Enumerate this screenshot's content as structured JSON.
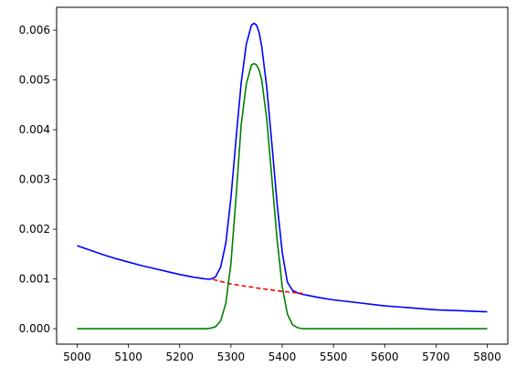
{
  "chart_data": {
    "type": "line",
    "title": "",
    "xlabel": "",
    "ylabel": "",
    "xlim": [
      4960,
      5840
    ],
    "ylim": [
      -0.00031,
      0.00646
    ],
    "grid": false,
    "x_ticks": [
      5000,
      5100,
      5200,
      5300,
      5400,
      5500,
      5600,
      5700,
      5800
    ],
    "y_ticks": [
      0.0,
      0.001,
      0.002,
      0.003,
      0.004,
      0.005,
      0.006
    ],
    "y_tick_labels": [
      "0.000",
      "0.001",
      "0.002",
      "0.003",
      "0.004",
      "0.005",
      "0.006"
    ],
    "series": [
      {
        "color": "#0000ff",
        "style": "solid",
        "x": [
          5000,
          5025,
          5050,
          5075,
          5100,
          5125,
          5150,
          5175,
          5200,
          5225,
          5250,
          5260,
          5270,
          5280,
          5290,
          5300,
          5310,
          5320,
          5330,
          5340,
          5345,
          5350,
          5355,
          5360,
          5370,
          5380,
          5390,
          5400,
          5410,
          5420,
          5430,
          5440,
          5450,
          5475,
          5500,
          5525,
          5550,
          5575,
          5600,
          5625,
          5650,
          5675,
          5700,
          5725,
          5750,
          5775,
          5800
        ],
        "values": [
          0.00167,
          0.00158,
          0.00149,
          0.00141,
          0.00134,
          0.00127,
          0.00121,
          0.00115,
          0.00109,
          0.00104,
          0.001,
          0.000995,
          0.00104,
          0.00124,
          0.00172,
          0.00263,
          0.00382,
          0.00494,
          0.00572,
          0.0061,
          0.00614,
          0.0061,
          0.00595,
          0.00568,
          0.00484,
          0.0037,
          0.00252,
          0.00154,
          0.00094,
          0.00077,
          0.00072,
          0.00069,
          0.00067,
          0.00062,
          0.00058,
          0.00055,
          0.00052,
          0.00049,
          0.00046,
          0.00044,
          0.00042,
          0.0004,
          0.00038,
          0.00037,
          0.00036,
          0.00035,
          0.00034
        ]
      },
      {
        "color": "#ff0000",
        "style": "dashed",
        "x": [
          5265,
          5300,
          5350,
          5400,
          5440
        ],
        "values": [
          0.00099,
          0.0009,
          0.00082,
          0.00075,
          0.00071
        ]
      },
      {
        "color": "#008000",
        "style": "solid",
        "x": [
          5000,
          5100,
          5200,
          5250,
          5260,
          5270,
          5280,
          5290,
          5300,
          5310,
          5320,
          5330,
          5340,
          5345,
          5350,
          5355,
          5360,
          5370,
          5380,
          5390,
          5400,
          5410,
          5420,
          5430,
          5440,
          5450,
          5500,
          5600,
          5700,
          5800
        ],
        "values": [
          0,
          0,
          0,
          0,
          1e-05,
          4e-05,
          0.00016,
          0.00051,
          0.00131,
          0.00265,
          0.0041,
          0.00492,
          0.0053,
          0.00533,
          0.0053,
          0.0052,
          0.005,
          0.0042,
          0.003,
          0.0018,
          0.00085,
          0.0003,
          8e-05,
          2e-05,
          0,
          0,
          0,
          0,
          0,
          0
        ]
      }
    ]
  }
}
